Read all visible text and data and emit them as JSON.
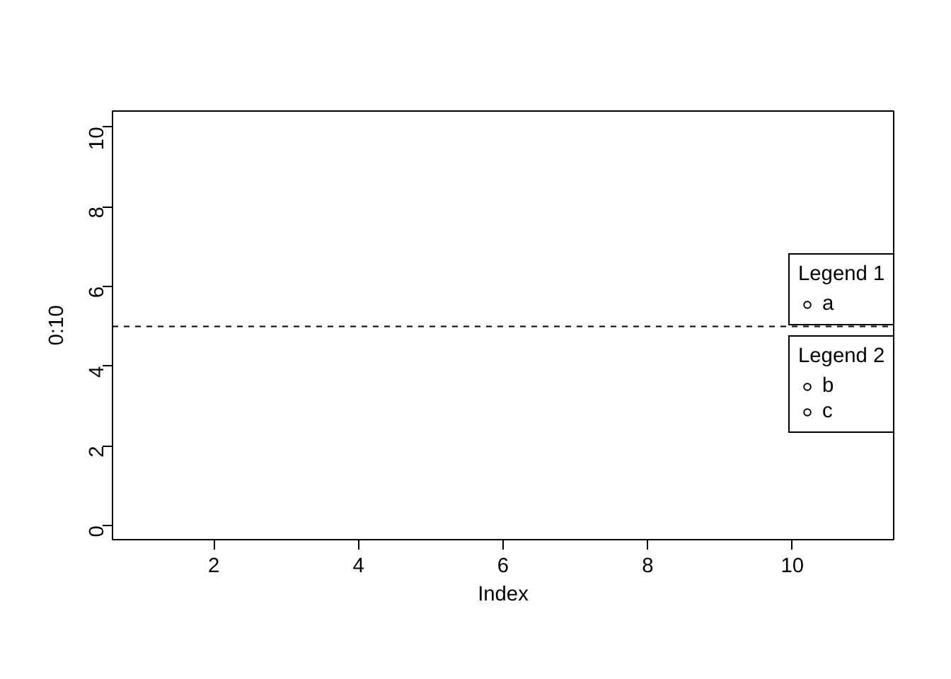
{
  "chart_data": {
    "type": "scatter",
    "xlabel": "Index",
    "ylabel": "0:10",
    "xlim": [
      0.6,
      11.4
    ],
    "ylim": [
      -0.35,
      10.4
    ],
    "xticks": [
      2,
      4,
      6,
      8,
      10
    ],
    "yticks": [
      0,
      2,
      4,
      6,
      8,
      10
    ],
    "x": [
      null
    ],
    "series": [
      {
        "name": "a",
        "color": "#000000",
        "values": [
          null
        ]
      },
      {
        "name": "b",
        "color": "#000000",
        "values": [
          null
        ]
      },
      {
        "name": "c",
        "color": "#000000",
        "values": [
          null
        ]
      }
    ],
    "marker": "circle",
    "legend": "right",
    "legend_title": "Legend 1",
    "annotations": [
      "Legend 2"
    ],
    "ref_lines": [
      {
        "axis": "y",
        "value": 5,
        "line_style": "dashed",
        "color": "#000000"
      }
    ],
    "grid": false
  }
}
